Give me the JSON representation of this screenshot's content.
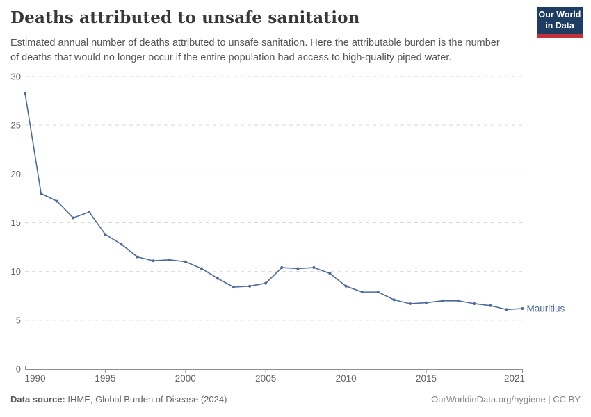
{
  "header": {
    "title": "Deaths attributed to unsafe sanitation",
    "subtitle_lines": [
      "Estimated annual number of deaths attributed to unsafe sanitation. Here the attributable burden is the number",
      "of deaths that would no longer occur if the entire population had access to high-quality piped water."
    ],
    "logo": {
      "line1": "Our World",
      "line2": "in Data"
    }
  },
  "chart_data": {
    "type": "line",
    "title": "Deaths attributed to unsafe sanitation",
    "xlabel": "",
    "ylabel": "",
    "xlim": [
      1990,
      2021
    ],
    "ylim": [
      0,
      30
    ],
    "xticks": [
      1990,
      1995,
      2000,
      2005,
      2010,
      2015,
      2021
    ],
    "yticks": [
      0,
      5,
      10,
      15,
      20,
      25,
      30
    ],
    "grid": "horizontal-dashed",
    "legend_position": "end-of-line-label",
    "x": [
      1990,
      1991,
      1992,
      1993,
      1994,
      1995,
      1996,
      1997,
      1998,
      1999,
      2000,
      2001,
      2002,
      2003,
      2004,
      2005,
      2006,
      2007,
      2008,
      2009,
      2010,
      2011,
      2012,
      2013,
      2014,
      2015,
      2016,
      2017,
      2018,
      2019,
      2020,
      2021
    ],
    "series": [
      {
        "name": "Mauritius",
        "color": "#4c6a9c",
        "values": [
          28.3,
          18.0,
          17.2,
          15.5,
          16.1,
          13.8,
          12.8,
          11.5,
          11.1,
          11.2,
          11.0,
          10.3,
          9.3,
          8.4,
          8.5,
          8.8,
          10.4,
          10.3,
          10.4,
          9.8,
          8.5,
          7.9,
          7.9,
          7.1,
          6.7,
          6.8,
          7.0,
          7.0,
          6.7,
          6.5,
          6.1,
          6.2
        ]
      }
    ],
    "entity_label": "Mauritius"
  },
  "footer": {
    "source_label": "Data source:",
    "source_text": " IHME, Global Burden of Disease (2024)",
    "credit": "OurWorldinData.org/hygiene | CC BY"
  },
  "colors": {
    "line": "#4c6a9c",
    "gridline": "#d9d9d9",
    "axis": "#8f8f8f",
    "tick_label": "#666666",
    "logo_bg": "#1d3d63",
    "logo_accent": "#c2313c"
  }
}
